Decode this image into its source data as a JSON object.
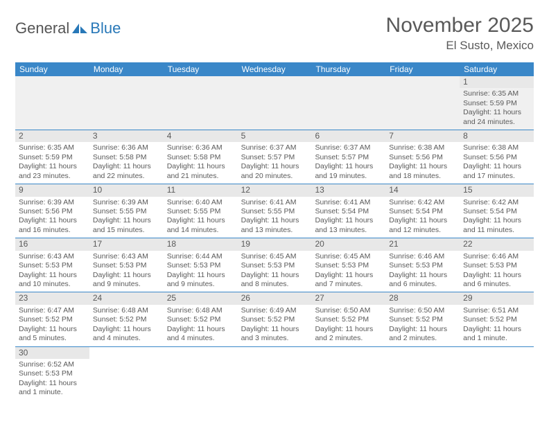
{
  "logo": {
    "text_general": "General",
    "text_blue": "Blue"
  },
  "title": {
    "month_year": "November 2025",
    "location": "El Susto, Mexico"
  },
  "colors": {
    "header_bg": "#3a87c8",
    "header_text": "#ffffff",
    "daynum_bg": "#e8e8e8",
    "text": "#595959",
    "rule": "#3a87c8",
    "blank_bg": "#f0f0f0"
  },
  "dow": [
    "Sunday",
    "Monday",
    "Tuesday",
    "Wednesday",
    "Thursday",
    "Friday",
    "Saturday"
  ],
  "weeks": [
    [
      {
        "blank": true
      },
      {
        "blank": true
      },
      {
        "blank": true
      },
      {
        "blank": true
      },
      {
        "blank": true
      },
      {
        "blank": true
      },
      {
        "n": "1",
        "sunrise": "Sunrise: 6:35 AM",
        "sunset": "Sunset: 5:59 PM",
        "daylight": "Daylight: 11 hours and 24 minutes."
      }
    ],
    [
      {
        "n": "2",
        "sunrise": "Sunrise: 6:35 AM",
        "sunset": "Sunset: 5:59 PM",
        "daylight": "Daylight: 11 hours and 23 minutes."
      },
      {
        "n": "3",
        "sunrise": "Sunrise: 6:36 AM",
        "sunset": "Sunset: 5:58 PM",
        "daylight": "Daylight: 11 hours and 22 minutes."
      },
      {
        "n": "4",
        "sunrise": "Sunrise: 6:36 AM",
        "sunset": "Sunset: 5:58 PM",
        "daylight": "Daylight: 11 hours and 21 minutes."
      },
      {
        "n": "5",
        "sunrise": "Sunrise: 6:37 AM",
        "sunset": "Sunset: 5:57 PM",
        "daylight": "Daylight: 11 hours and 20 minutes."
      },
      {
        "n": "6",
        "sunrise": "Sunrise: 6:37 AM",
        "sunset": "Sunset: 5:57 PM",
        "daylight": "Daylight: 11 hours and 19 minutes."
      },
      {
        "n": "7",
        "sunrise": "Sunrise: 6:38 AM",
        "sunset": "Sunset: 5:56 PM",
        "daylight": "Daylight: 11 hours and 18 minutes."
      },
      {
        "n": "8",
        "sunrise": "Sunrise: 6:38 AM",
        "sunset": "Sunset: 5:56 PM",
        "daylight": "Daylight: 11 hours and 17 minutes."
      }
    ],
    [
      {
        "n": "9",
        "sunrise": "Sunrise: 6:39 AM",
        "sunset": "Sunset: 5:56 PM",
        "daylight": "Daylight: 11 hours and 16 minutes."
      },
      {
        "n": "10",
        "sunrise": "Sunrise: 6:39 AM",
        "sunset": "Sunset: 5:55 PM",
        "daylight": "Daylight: 11 hours and 15 minutes."
      },
      {
        "n": "11",
        "sunrise": "Sunrise: 6:40 AM",
        "sunset": "Sunset: 5:55 PM",
        "daylight": "Daylight: 11 hours and 14 minutes."
      },
      {
        "n": "12",
        "sunrise": "Sunrise: 6:41 AM",
        "sunset": "Sunset: 5:55 PM",
        "daylight": "Daylight: 11 hours and 13 minutes."
      },
      {
        "n": "13",
        "sunrise": "Sunrise: 6:41 AM",
        "sunset": "Sunset: 5:54 PM",
        "daylight": "Daylight: 11 hours and 13 minutes."
      },
      {
        "n": "14",
        "sunrise": "Sunrise: 6:42 AM",
        "sunset": "Sunset: 5:54 PM",
        "daylight": "Daylight: 11 hours and 12 minutes."
      },
      {
        "n": "15",
        "sunrise": "Sunrise: 6:42 AM",
        "sunset": "Sunset: 5:54 PM",
        "daylight": "Daylight: 11 hours and 11 minutes."
      }
    ],
    [
      {
        "n": "16",
        "sunrise": "Sunrise: 6:43 AM",
        "sunset": "Sunset: 5:53 PM",
        "daylight": "Daylight: 11 hours and 10 minutes."
      },
      {
        "n": "17",
        "sunrise": "Sunrise: 6:43 AM",
        "sunset": "Sunset: 5:53 PM",
        "daylight": "Daylight: 11 hours and 9 minutes."
      },
      {
        "n": "18",
        "sunrise": "Sunrise: 6:44 AM",
        "sunset": "Sunset: 5:53 PM",
        "daylight": "Daylight: 11 hours and 9 minutes."
      },
      {
        "n": "19",
        "sunrise": "Sunrise: 6:45 AM",
        "sunset": "Sunset: 5:53 PM",
        "daylight": "Daylight: 11 hours and 8 minutes."
      },
      {
        "n": "20",
        "sunrise": "Sunrise: 6:45 AM",
        "sunset": "Sunset: 5:53 PM",
        "daylight": "Daylight: 11 hours and 7 minutes."
      },
      {
        "n": "21",
        "sunrise": "Sunrise: 6:46 AM",
        "sunset": "Sunset: 5:53 PM",
        "daylight": "Daylight: 11 hours and 6 minutes."
      },
      {
        "n": "22",
        "sunrise": "Sunrise: 6:46 AM",
        "sunset": "Sunset: 5:53 PM",
        "daylight": "Daylight: 11 hours and 6 minutes."
      }
    ],
    [
      {
        "n": "23",
        "sunrise": "Sunrise: 6:47 AM",
        "sunset": "Sunset: 5:52 PM",
        "daylight": "Daylight: 11 hours and 5 minutes."
      },
      {
        "n": "24",
        "sunrise": "Sunrise: 6:48 AM",
        "sunset": "Sunset: 5:52 PM",
        "daylight": "Daylight: 11 hours and 4 minutes."
      },
      {
        "n": "25",
        "sunrise": "Sunrise: 6:48 AM",
        "sunset": "Sunset: 5:52 PM",
        "daylight": "Daylight: 11 hours and 4 minutes."
      },
      {
        "n": "26",
        "sunrise": "Sunrise: 6:49 AM",
        "sunset": "Sunset: 5:52 PM",
        "daylight": "Daylight: 11 hours and 3 minutes."
      },
      {
        "n": "27",
        "sunrise": "Sunrise: 6:50 AM",
        "sunset": "Sunset: 5:52 PM",
        "daylight": "Daylight: 11 hours and 2 minutes."
      },
      {
        "n": "28",
        "sunrise": "Sunrise: 6:50 AM",
        "sunset": "Sunset: 5:52 PM",
        "daylight": "Daylight: 11 hours and 2 minutes."
      },
      {
        "n": "29",
        "sunrise": "Sunrise: 6:51 AM",
        "sunset": "Sunset: 5:52 PM",
        "daylight": "Daylight: 11 hours and 1 minute."
      }
    ],
    [
      {
        "n": "30",
        "sunrise": "Sunrise: 6:52 AM",
        "sunset": "Sunset: 5:53 PM",
        "daylight": "Daylight: 11 hours and 1 minute."
      },
      {
        "blank": true
      },
      {
        "blank": true
      },
      {
        "blank": true
      },
      {
        "blank": true
      },
      {
        "blank": true
      },
      {
        "blank": true
      }
    ]
  ]
}
